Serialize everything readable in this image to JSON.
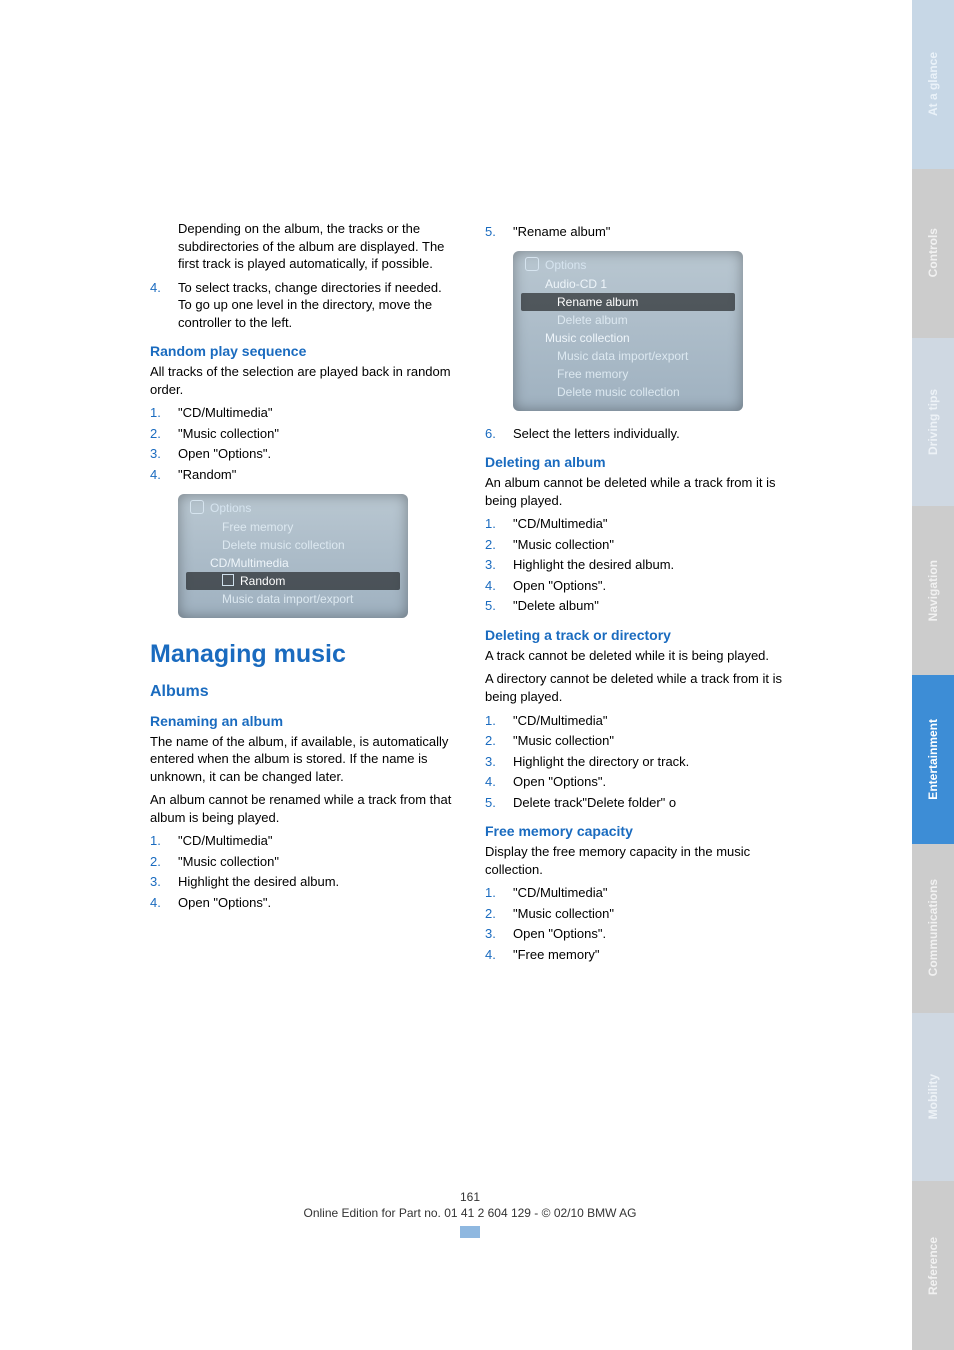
{
  "sidetabs": [
    {
      "label": "At a glance",
      "bg": "#c7d7e6",
      "fg": "#eaf2f9"
    },
    {
      "label": "Controls",
      "bg": "#cccccc",
      "fg": "#f1f1f1"
    },
    {
      "label": "Driving tips",
      "bg": "#cfd8e2",
      "fg": "#edf2f7"
    },
    {
      "label": "Navigation",
      "bg": "#cccccc",
      "fg": "#f1f1f1"
    },
    {
      "label": "Entertainment",
      "bg": "#3d8dd6",
      "fg": "#ffffff"
    },
    {
      "label": "Communications",
      "bg": "#cccccc",
      "fg": "#f1f1f1"
    },
    {
      "label": "Mobility",
      "bg": "#cfd8e2",
      "fg": "#edf2f7"
    },
    {
      "label": "Reference",
      "bg": "#cccccc",
      "fg": "#f1f1f1"
    }
  ],
  "left": {
    "intro1": "Depending on the album, the tracks or the subdirectories of the album are displayed. The first track is played automatically, if possible.",
    "intro_step4_num": "4.",
    "intro_step4": "To select tracks, change directories if needed. To go up one level in the directory, move the controller to the left.",
    "random_title": "Random play sequence",
    "random_desc": "All tracks of the selection are played back in random order.",
    "random_steps": [
      "\"CD/Multimedia\"",
      "\"Music collection\"",
      "Open \"Options\".",
      "\"Random\""
    ],
    "random_screenshot": {
      "title": "Options",
      "items": [
        {
          "txt": "Free memory",
          "sub": true
        },
        {
          "txt": "Delete music collection",
          "sub": true
        },
        {
          "txt": "CD/Multimedia",
          "sub": false
        },
        {
          "txt": "Random",
          "sub": true,
          "hl": true,
          "checkbox": true
        },
        {
          "txt": "Music data import/export",
          "sub": true
        }
      ]
    },
    "managing_title": "Managing music",
    "albums_title": "Albums",
    "renaming_title": "Renaming an album",
    "renaming_desc1": "The name of the album, if available, is automatically entered when the album is stored. If the name is unknown, it can be changed later.",
    "renaming_desc2": "An album cannot be renamed while a track from that album is being played.",
    "renaming_steps": [
      "\"CD/Multimedia\"",
      "\"Music collection\"",
      "Highlight the desired album.",
      "Open \"Options\"."
    ]
  },
  "right": {
    "rename_step5_num": "5.",
    "rename_step5": "\"Rename album\"",
    "rename_screenshot": {
      "title": "Options",
      "items": [
        {
          "txt": "Audio-CD 1",
          "sub": false
        },
        {
          "txt": "Rename album",
          "sub": true,
          "hl": true
        },
        {
          "txt": "Delete album",
          "sub": true
        },
        {
          "txt": "Music collection",
          "sub": false
        },
        {
          "txt": "Music data import/export",
          "sub": true
        },
        {
          "txt": "Free memory",
          "sub": true
        },
        {
          "txt": "Delete music collection",
          "sub": true
        }
      ]
    },
    "rename_step6_num": "6.",
    "rename_step6": "Select the letters individually.",
    "delalbum_title": "Deleting an album",
    "delalbum_desc": "An album cannot be deleted while a track from it is being played.",
    "delalbum_steps": [
      "\"CD/Multimedia\"",
      "\"Music collection\"",
      "Highlight the desired album.",
      "Open \"Options\".",
      "\"Delete album\""
    ],
    "deltrack_title": "Deleting a track or directory",
    "deltrack_desc1": "A track cannot be deleted while it is being played.",
    "deltrack_desc2": "A directory cannot be deleted while a track from it is being played.",
    "deltrack_steps": [
      "\"CD/Multimedia\"",
      "\"Music collection\"",
      "Highlight the directory or track.",
      "Open \"Options\".",
      "Delete track\"Delete folder\" o"
    ],
    "freemem_title": "Free memory capacity",
    "freemem_desc": "Display the free memory capacity in the music collection.",
    "freemem_steps": [
      "\"CD/Multimedia\"",
      "\"Music collection\"",
      "Open \"Options\".",
      "\"Free memory\""
    ]
  },
  "footer": {
    "page": "161",
    "line": "Online Edition for Part no. 01 41 2 604 129 - © 02/10 BMW AG"
  }
}
